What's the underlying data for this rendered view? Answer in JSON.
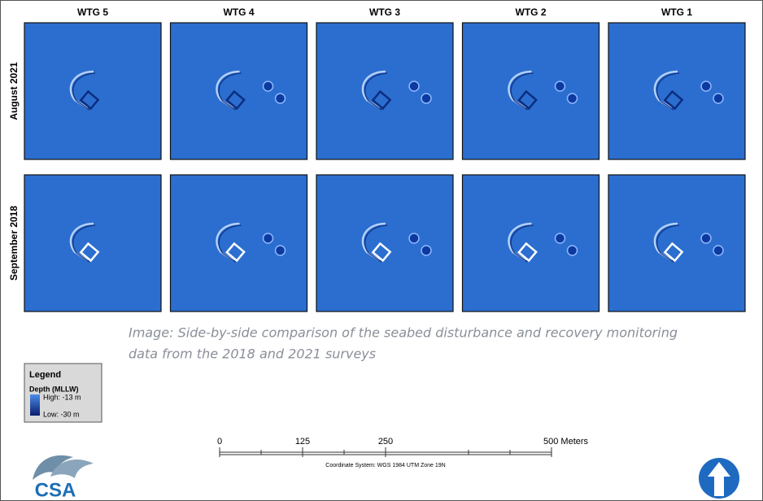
{
  "header": {
    "columns": [
      "WTG 5",
      "WTG 4",
      "WTG 3",
      "WTG 2",
      "WTG 1"
    ],
    "rows": [
      "August 2021",
      "September 2018"
    ]
  },
  "caption": [
    "Image: Side-by-side comparison of the seabed disturbance and recovery monitoring",
    "data from the 2018 and 2021 surveys"
  ],
  "legend": {
    "title": "Legend",
    "subtitle": "Depth (MLLW)",
    "high": "High: -13 m",
    "low": "Low: -30 m"
  },
  "scale_bar": {
    "labels": [
      "0",
      "125",
      "250",
      "500 Meters"
    ],
    "coordinate_system": "Coordinate System: WGS 1984 UTM Zone 19N"
  },
  "logo": "CSA"
}
